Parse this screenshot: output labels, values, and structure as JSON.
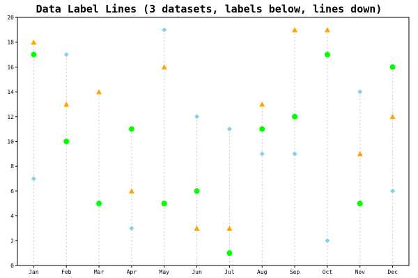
{
  "chart_data": {
    "type": "scatter",
    "title": "Data Label Lines (3 datasets, labels below, lines down)",
    "categories": [
      "Jan",
      "Feb",
      "Mar",
      "Apr",
      "May",
      "Jun",
      "Jul",
      "Aug",
      "Sep",
      "Oct",
      "Nov",
      "Dec"
    ],
    "ylim": [
      0,
      20
    ],
    "yticks": [
      0,
      2,
      4,
      6,
      8,
      10,
      12,
      14,
      16,
      18,
      20
    ],
    "grid": false,
    "drop_lines": true,
    "series": [
      {
        "marker": "diamond",
        "color": "#87ceeb",
        "values": [
          7,
          17,
          null,
          3,
          19,
          12,
          11,
          9,
          9,
          2,
          14,
          6
        ]
      },
      {
        "marker": "triangle",
        "color": "#ffa500",
        "values": [
          18,
          13,
          14,
          6,
          16,
          3,
          3,
          13,
          19,
          19,
          9,
          12
        ]
      },
      {
        "marker": "circle",
        "color": "#00ff00",
        "values": [
          17,
          10,
          5,
          11,
          5,
          6,
          1,
          11,
          12,
          17,
          5,
          16
        ]
      }
    ]
  }
}
